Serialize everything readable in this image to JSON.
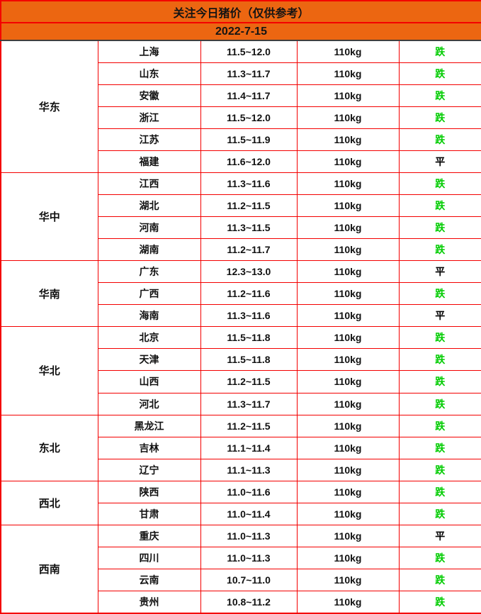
{
  "header": {
    "title": "关注今日猪价（仅供参考）",
    "date": "2022-7-15"
  },
  "trend_words": {
    "down": "跌",
    "flat": "平"
  },
  "colors": {
    "header_bg": "#ec6611",
    "border_red": "#f40000",
    "trend_down_green": "#00cc00",
    "trend_flat_black": "#000000",
    "header_divider": "#3f3f3f"
  },
  "table": {
    "regions": [
      {
        "name": "华东",
        "rows": [
          {
            "province": "上海",
            "price": "11.5~12.0",
            "weight": "110kg",
            "trend": "跌"
          },
          {
            "province": "山东",
            "price": "11.3~11.7",
            "weight": "110kg",
            "trend": "跌"
          },
          {
            "province": "安徽",
            "price": "11.4~11.7",
            "weight": "110kg",
            "trend": "跌"
          },
          {
            "province": "浙江",
            "price": "11.5~12.0",
            "weight": "110kg",
            "trend": "跌"
          },
          {
            "province": "江苏",
            "price": "11.5~11.9",
            "weight": "110kg",
            "trend": "跌"
          },
          {
            "province": "福建",
            "price": "11.6~12.0",
            "weight": "110kg",
            "trend": "平"
          }
        ]
      },
      {
        "name": "华中",
        "rows": [
          {
            "province": "江西",
            "price": "11.3~11.6",
            "weight": "110kg",
            "trend": "跌"
          },
          {
            "province": "湖北",
            "price": "11.2~11.5",
            "weight": "110kg",
            "trend": "跌"
          },
          {
            "province": "河南",
            "price": "11.3~11.5",
            "weight": "110kg",
            "trend": "跌"
          },
          {
            "province": "湖南",
            "price": "11.2~11.7",
            "weight": "110kg",
            "trend": "跌"
          }
        ]
      },
      {
        "name": "华南",
        "rows": [
          {
            "province": "广东",
            "price": "12.3~13.0",
            "weight": "110kg",
            "trend": "平"
          },
          {
            "province": "广西",
            "price": "11.2~11.6",
            "weight": "110kg",
            "trend": "跌"
          },
          {
            "province": "海南",
            "price": "11.3~11.6",
            "weight": "110kg",
            "trend": "平"
          }
        ]
      },
      {
        "name": "华北",
        "rows": [
          {
            "province": "北京",
            "price": "11.5~11.8",
            "weight": "110kg",
            "trend": "跌"
          },
          {
            "province": "天津",
            "price": "11.5~11.8",
            "weight": "110kg",
            "trend": "跌"
          },
          {
            "province": "山西",
            "price": "11.2~11.5",
            "weight": "110kg",
            "trend": "跌"
          },
          {
            "province": "河北",
            "price": "11.3~11.7",
            "weight": "110kg",
            "trend": "跌"
          }
        ]
      },
      {
        "name": "东北",
        "rows": [
          {
            "province": "黑龙江",
            "price": "11.2~11.5",
            "weight": "110kg",
            "trend": "跌"
          },
          {
            "province": "吉林",
            "price": "11.1~11.4",
            "weight": "110kg",
            "trend": "跌"
          },
          {
            "province": "辽宁",
            "price": "11.1~11.3",
            "weight": "110kg",
            "trend": "跌"
          }
        ]
      },
      {
        "name": "西北",
        "rows": [
          {
            "province": "陕西",
            "price": "11.0~11.6",
            "weight": "110kg",
            "trend": "跌"
          },
          {
            "province": "甘肃",
            "price": "11.0~11.4",
            "weight": "110kg",
            "trend": "跌"
          }
        ]
      },
      {
        "name": "西南",
        "rows": [
          {
            "province": "重庆",
            "price": "11.0~11.3",
            "weight": "110kg",
            "trend": "平"
          },
          {
            "province": "四川",
            "price": "11.0~11.3",
            "weight": "110kg",
            "trend": "跌"
          },
          {
            "province": "云南",
            "price": "10.7~11.0",
            "weight": "110kg",
            "trend": "跌"
          },
          {
            "province": "贵州",
            "price": "10.8~11.2",
            "weight": "110kg",
            "trend": "跌"
          }
        ]
      }
    ]
  }
}
